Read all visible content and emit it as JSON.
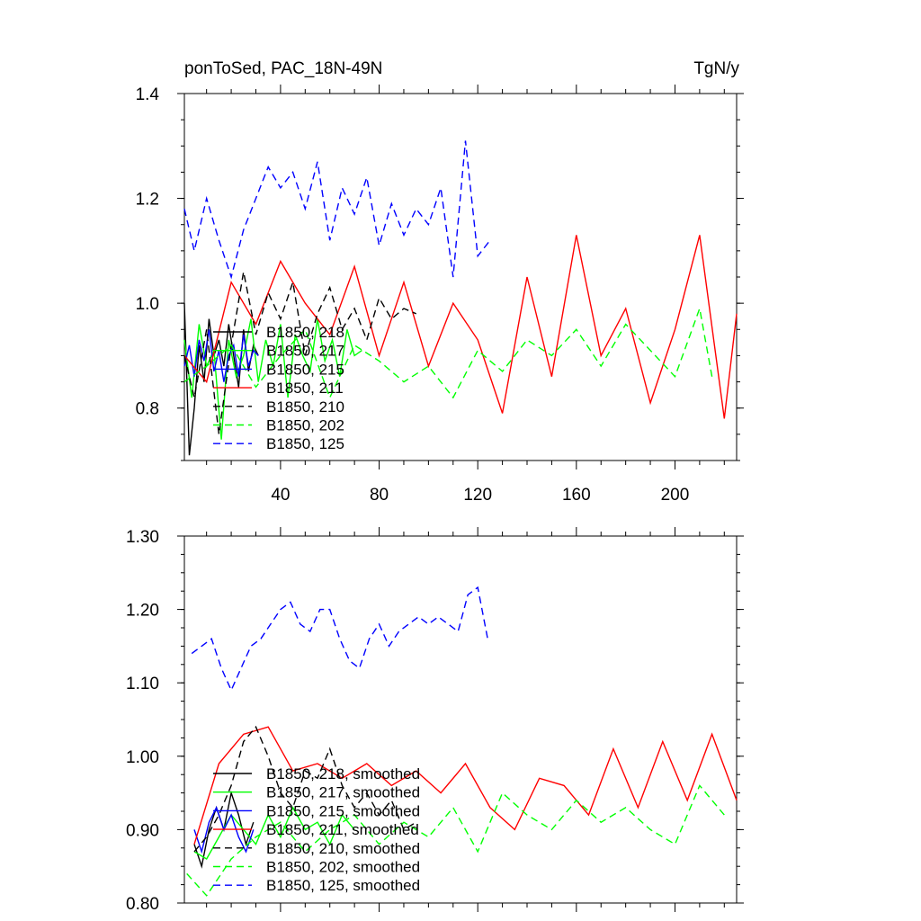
{
  "colors": {
    "black": "#000000",
    "green": "#00ff00",
    "blue": "#0000ff",
    "red": "#ff0000"
  },
  "chart_data": [
    {
      "type": "line",
      "title": "ponToSed, PAC_18N-49N",
      "units": "TgN/y",
      "xlim": [
        1,
        225
      ],
      "ylim": [
        0.7,
        1.4
      ],
      "xticks": [
        40,
        80,
        120,
        160,
        200
      ],
      "yticks": [
        0.8,
        1.0,
        1.2,
        1.4
      ],
      "ytick_labels": [
        "0.8",
        "1.0",
        "1.2",
        "1.4"
      ],
      "legend_position": "lower-left",
      "series": [
        {
          "name": "B1850, 218",
          "color": "#000000",
          "dash": "solid",
          "x": [
            1,
            3,
            5,
            7,
            9,
            11,
            13,
            15,
            17,
            19,
            21,
            23,
            25,
            27,
            29,
            31
          ],
          "y": [
            1.0,
            0.71,
            0.8,
            0.92,
            0.85,
            0.97,
            0.9,
            0.93,
            0.88,
            0.96,
            0.9,
            0.84,
            0.95,
            0.87,
            0.92,
            0.9
          ]
        },
        {
          "name": "B1850, 217",
          "color": "#00ff00",
          "dash": "solid",
          "x": [
            1,
            4,
            7,
            10,
            13,
            16,
            19,
            22,
            25,
            28,
            31,
            34,
            37,
            40,
            43,
            46,
            49,
            52,
            55,
            58,
            61,
            64,
            67,
            70,
            73
          ],
          "y": [
            0.93,
            0.82,
            0.96,
            0.88,
            0.91,
            0.74,
            0.93,
            0.86,
            0.9,
            0.97,
            0.85,
            0.93,
            0.88,
            0.96,
            0.82,
            0.94,
            0.9,
            0.87,
            0.97,
            0.89,
            0.93,
            0.86,
            0.95,
            0.9,
            0.91
          ]
        },
        {
          "name": "B1850, 215",
          "color": "#0000ff",
          "dash": "solid",
          "x": [
            1,
            3,
            5,
            7,
            9,
            11,
            13,
            15,
            17,
            19,
            21,
            23,
            25,
            27,
            29,
            31
          ],
          "y": [
            0.88,
            0.92,
            0.86,
            0.93,
            0.89,
            0.95,
            0.87,
            0.91,
            0.85,
            0.9,
            0.92,
            0.86,
            0.94,
            0.88,
            0.91,
            0.9
          ]
        },
        {
          "name": "B1850, 211",
          "color": "#ff0000",
          "dash": "solid",
          "x": [
            1,
            10,
            20,
            30,
            40,
            50,
            60,
            70,
            80,
            90,
            100,
            110,
            120,
            130,
            140,
            150,
            160,
            170,
            180,
            190,
            200,
            210,
            220,
            225
          ],
          "y": [
            0.9,
            0.85,
            1.04,
            0.96,
            1.08,
            1.0,
            0.94,
            1.07,
            0.9,
            1.04,
            0.88,
            1.0,
            0.93,
            0.79,
            1.05,
            0.86,
            1.13,
            0.9,
            0.99,
            0.81,
            0.95,
            1.13,
            0.78,
            0.98
          ]
        },
        {
          "name": "B1850, 210",
          "color": "#000000",
          "dash": "dashed",
          "x": [
            1,
            5,
            10,
            15,
            20,
            25,
            30,
            35,
            40,
            45,
            50,
            55,
            60,
            65,
            70,
            75,
            80,
            85,
            90,
            95
          ],
          "y": [
            0.9,
            0.82,
            0.95,
            0.75,
            0.92,
            1.06,
            0.94,
            1.02,
            0.97,
            1.04,
            0.9,
            0.98,
            1.03,
            0.95,
            0.99,
            0.93,
            1.01,
            0.97,
            0.99,
            0.98
          ]
        },
        {
          "name": "B1850, 202",
          "color": "#00ff00",
          "dash": "dashed",
          "x": [
            1,
            10,
            20,
            30,
            40,
            50,
            60,
            70,
            80,
            90,
            100,
            110,
            120,
            130,
            140,
            150,
            160,
            170,
            180,
            190,
            200,
            210,
            215
          ],
          "y": [
            0.85,
            0.88,
            0.92,
            0.84,
            0.9,
            0.95,
            0.82,
            0.92,
            0.89,
            0.85,
            0.88,
            0.82,
            0.91,
            0.87,
            0.93,
            0.9,
            0.95,
            0.88,
            0.96,
            0.91,
            0.86,
            0.99,
            0.86
          ]
        },
        {
          "name": "B1850, 125",
          "color": "#0000ff",
          "dash": "dashed",
          "x": [
            1,
            5,
            10,
            15,
            20,
            25,
            30,
            35,
            40,
            45,
            50,
            55,
            60,
            65,
            70,
            75,
            80,
            85,
            90,
            95,
            100,
            105,
            110,
            115,
            120,
            125
          ],
          "y": [
            1.18,
            1.1,
            1.2,
            1.12,
            1.05,
            1.14,
            1.2,
            1.26,
            1.22,
            1.25,
            1.18,
            1.27,
            1.12,
            1.22,
            1.17,
            1.24,
            1.11,
            1.19,
            1.13,
            1.18,
            1.15,
            1.22,
            1.05,
            1.31,
            1.09,
            1.12
          ]
        }
      ]
    },
    {
      "type": "line",
      "xlim": [
        1,
        225
      ],
      "ylim": [
        0.8,
        1.3
      ],
      "xticks": [
        40,
        80,
        120,
        160,
        200
      ],
      "yticks": [
        0.8,
        0.9,
        1.0,
        1.1,
        1.2,
        1.3
      ],
      "ytick_labels": [
        "0.80",
        "0.90",
        "1.00",
        "1.10",
        "1.20",
        "1.30"
      ],
      "legend_position": "lower-left",
      "series": [
        {
          "name": "B1850, 218, smoothed",
          "color": "#000000",
          "dash": "solid",
          "x": [
            5,
            8,
            11,
            14,
            17,
            20,
            23,
            26,
            29
          ],
          "y": [
            0.88,
            0.85,
            0.9,
            0.93,
            0.9,
            0.95,
            0.92,
            0.88,
            0.91
          ]
        },
        {
          "name": "B1850, 217, smoothed",
          "color": "#00ff00",
          "dash": "solid",
          "x": [
            5,
            10,
            15,
            20,
            25,
            30,
            35,
            40,
            45,
            50,
            55,
            60,
            65,
            70
          ],
          "y": [
            0.87,
            0.86,
            0.89,
            0.92,
            0.9,
            0.88,
            0.92,
            0.89,
            0.93,
            0.9,
            0.91,
            0.88,
            0.92,
            0.9
          ]
        },
        {
          "name": "B1850, 215, smoothed",
          "color": "#0000ff",
          "dash": "solid",
          "x": [
            5,
            8,
            11,
            14,
            17,
            20,
            23,
            26,
            29
          ],
          "y": [
            0.9,
            0.87,
            0.91,
            0.93,
            0.9,
            0.92,
            0.89,
            0.87,
            0.9
          ]
        },
        {
          "name": "B1850, 211, smoothed",
          "color": "#ff0000",
          "dash": "solid",
          "x": [
            5,
            15,
            25,
            35,
            45,
            55,
            65,
            75,
            85,
            95,
            105,
            115,
            125,
            135,
            145,
            155,
            165,
            175,
            185,
            195,
            205,
            215,
            225
          ],
          "y": [
            0.88,
            0.99,
            1.03,
            1.04,
            0.98,
            0.99,
            0.97,
            0.99,
            0.96,
            0.98,
            0.95,
            0.99,
            0.93,
            0.9,
            0.97,
            0.96,
            0.92,
            1.01,
            0.93,
            1.02,
            0.94,
            1.03,
            0.94
          ]
        },
        {
          "name": "B1850, 210, smoothed",
          "color": "#000000",
          "dash": "dashed",
          "x": [
            5,
            10,
            15,
            20,
            25,
            30,
            35,
            40,
            45,
            50,
            55,
            60,
            65,
            70,
            75,
            80,
            85,
            90,
            95
          ],
          "y": [
            0.87,
            0.89,
            0.92,
            0.96,
            1.02,
            1.04,
            1.0,
            0.95,
            0.93,
            0.98,
            0.97,
            1.01,
            0.96,
            0.93,
            0.95,
            0.92,
            0.94,
            0.9,
            0.91
          ]
        },
        {
          "name": "B1850, 202, smoothed",
          "color": "#00ff00",
          "dash": "dashed",
          "x": [
            2,
            10,
            20,
            30,
            40,
            50,
            60,
            70,
            80,
            90,
            100,
            110,
            120,
            130,
            140,
            150,
            160,
            170,
            180,
            190,
            200,
            210,
            220
          ],
          "y": [
            0.84,
            0.81,
            0.86,
            0.89,
            0.91,
            0.87,
            0.9,
            0.92,
            0.88,
            0.91,
            0.89,
            0.93,
            0.87,
            0.95,
            0.92,
            0.9,
            0.94,
            0.91,
            0.93,
            0.9,
            0.88,
            0.96,
            0.92
          ]
        },
        {
          "name": "B1850, 125, smoothed",
          "color": "#0000ff",
          "dash": "dashed",
          "x": [
            4,
            8,
            12,
            16,
            20,
            24,
            28,
            32,
            36,
            40,
            44,
            48,
            52,
            56,
            60,
            64,
            68,
            72,
            76,
            80,
            84,
            88,
            92,
            96,
            100,
            104,
            108,
            112,
            116,
            120,
            124
          ],
          "y": [
            1.14,
            1.15,
            1.16,
            1.12,
            1.09,
            1.12,
            1.15,
            1.16,
            1.18,
            1.2,
            1.21,
            1.18,
            1.17,
            1.2,
            1.2,
            1.16,
            1.13,
            1.12,
            1.16,
            1.18,
            1.15,
            1.17,
            1.18,
            1.19,
            1.18,
            1.19,
            1.18,
            1.17,
            1.22,
            1.23,
            1.16
          ]
        }
      ]
    }
  ]
}
